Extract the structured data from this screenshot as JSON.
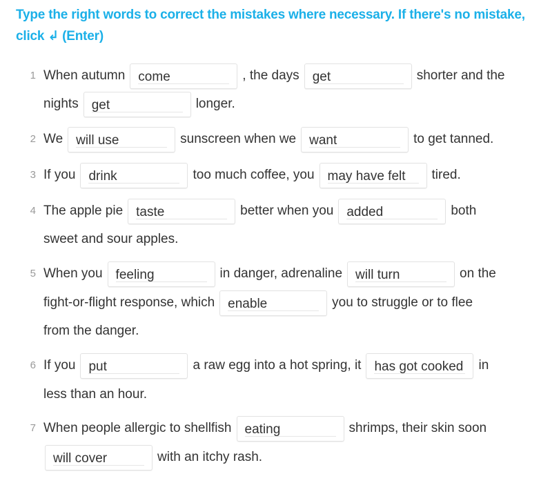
{
  "instructions": "Type the right words to correct the mistakes where necessary. If there's no mistake, click ↲ (Enter)",
  "questions": [
    {
      "num": "1",
      "lines": [
        [
          {
            "t": "When autumn"
          },
          {
            "i": "come"
          },
          {
            "t": ", the days"
          },
          {
            "i": "get"
          },
          {
            "t": "shorter and the"
          }
        ],
        [
          {
            "t": "nights"
          },
          {
            "i": "get"
          },
          {
            "t": "longer."
          }
        ]
      ]
    },
    {
      "num": "2",
      "lines": [
        [
          {
            "t": "We"
          },
          {
            "i": "will use"
          },
          {
            "t": "sunscreen when we"
          },
          {
            "i": "want"
          },
          {
            "t": "to get tanned."
          }
        ]
      ]
    },
    {
      "num": "3",
      "lines": [
        [
          {
            "t": "If you"
          },
          {
            "i": "drink"
          },
          {
            "t": "too much coffee, you"
          },
          {
            "i": "may have felt"
          },
          {
            "t": "tired."
          }
        ]
      ]
    },
    {
      "num": "4",
      "lines": [
        [
          {
            "t": "The apple pie"
          },
          {
            "i": "taste"
          },
          {
            "t": "better when you"
          },
          {
            "i": "added"
          },
          {
            "t": "both"
          }
        ],
        [
          {
            "t": "sweet and sour apples."
          }
        ]
      ]
    },
    {
      "num": "5",
      "lines": [
        [
          {
            "t": "When you"
          },
          {
            "i": "feeling"
          },
          {
            "t": "in danger, adrenaline"
          },
          {
            "i": "will turn"
          },
          {
            "t": "on the"
          }
        ],
        [
          {
            "t": "fight-or-flight response, which"
          },
          {
            "i": "enable"
          },
          {
            "t": "you to struggle or to flee"
          }
        ],
        [
          {
            "t": "from the danger."
          }
        ]
      ]
    },
    {
      "num": "6",
      "lines": [
        [
          {
            "t": "If you"
          },
          {
            "i": "put"
          },
          {
            "t": "a raw egg into a hot spring, it"
          },
          {
            "i": "has got cooked"
          },
          {
            "t": "in"
          }
        ],
        [
          {
            "t": "less than an hour."
          }
        ]
      ]
    },
    {
      "num": "7",
      "lines": [
        [
          {
            "t": "When people allergic to shellfish"
          },
          {
            "i": "eating"
          },
          {
            "t": "shrimps, their skin soon"
          }
        ],
        [
          {
            "i": "will cover"
          },
          {
            "t": "with an itchy rash."
          }
        ]
      ]
    }
  ]
}
